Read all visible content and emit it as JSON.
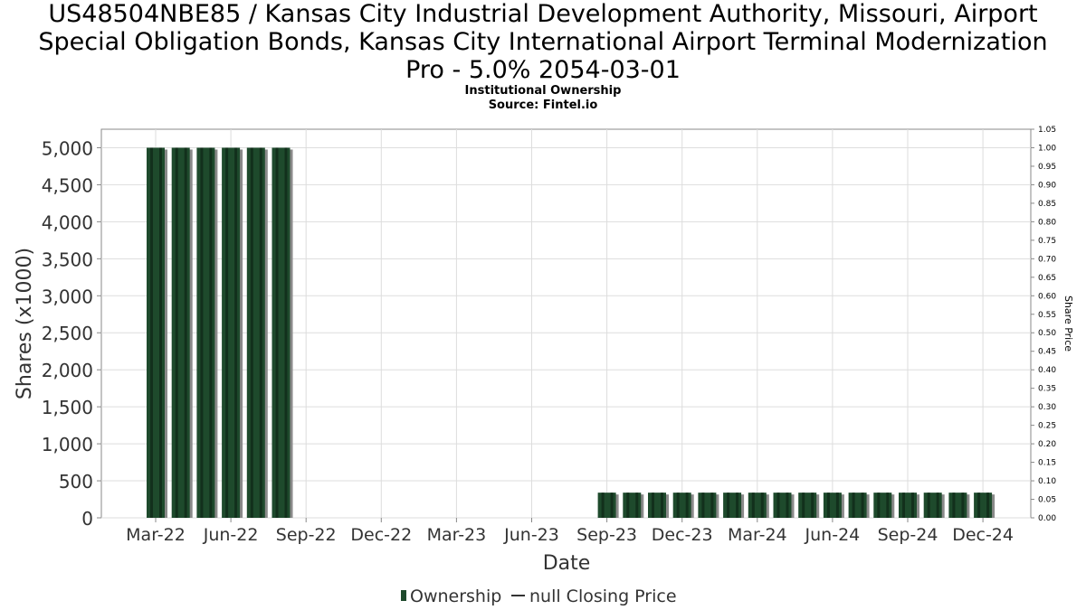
{
  "title_lines": [
    "US48504NBE85 / Kansas City Industrial Development Authority, Missouri, Airport",
    "Special Obligation Bonds, Kansas City International Airport Terminal Modernization",
    "Pro - 5.0% 2054-03-01"
  ],
  "subtitle": "Institutional Ownership",
  "source": "Source: Fintel.io",
  "colors": {
    "bar": "#1e4a2c",
    "bar_dark": "#12301c",
    "bar_shadow": "#8a8a8a",
    "grid": "#dddddd",
    "axis": "#888888",
    "text": "#333333"
  },
  "chart_data": {
    "type": "bar",
    "title": "US48504NBE85 / Kansas City Industrial Development Authority, Missouri, Airport Special Obligation Bonds, Kansas City International Airport Terminal Modernization Pro - 5.0% 2054-03-01",
    "subtitle": "Institutional Ownership",
    "xlabel": "Date",
    "ylabel": "Shares (x1000)",
    "y2label": "Share Price",
    "x_tick_labels": [
      "Mar-22",
      "Jun-22",
      "Sep-22",
      "Dec-22",
      "Mar-23",
      "Jun-23",
      "Sep-23",
      "Dec-23",
      "Mar-24",
      "Jun-24",
      "Sep-24",
      "Dec-24"
    ],
    "y_ticks": [
      0,
      500,
      1000,
      1500,
      2000,
      2500,
      3000,
      3500,
      4000,
      4500,
      5000
    ],
    "y_tick_labels": [
      "0",
      "500",
      "1,000",
      "1,500",
      "2,000",
      "2,500",
      "3,000",
      "3,500",
      "4,000",
      "4,500",
      "5,000"
    ],
    "ylim": [
      0,
      5250
    ],
    "y2_ticks": [
      "0.00",
      "0.05",
      "0.10",
      "0.15",
      "0.20",
      "0.25",
      "0.30",
      "0.35",
      "0.40",
      "0.45",
      "0.50",
      "0.55",
      "0.60",
      "0.65",
      "0.70",
      "0.75",
      "0.80",
      "0.85",
      "0.90",
      "0.95",
      "1.00",
      "1.05"
    ],
    "y2lim": [
      0,
      1.05
    ],
    "grid": true,
    "legend_position": "bottom-center",
    "series": [
      {
        "name": "Ownership",
        "kind": "bar",
        "x": [
          "2022-03",
          "2022-04",
          "2022-05",
          "2022-06",
          "2022-07",
          "2022-08",
          "2023-09",
          "2023-10",
          "2023-11",
          "2023-12",
          "2024-01",
          "2024-02",
          "2024-03",
          "2024-04",
          "2024-05",
          "2024-06",
          "2024-07",
          "2024-08",
          "2024-09",
          "2024-10",
          "2024-11",
          "2024-12"
        ],
        "values": [
          5000,
          5000,
          5000,
          5000,
          5000,
          5000,
          340,
          340,
          340,
          340,
          340,
          340,
          340,
          340,
          340,
          340,
          340,
          340,
          340,
          340,
          340,
          340
        ]
      },
      {
        "name": "null Closing Price",
        "kind": "line",
        "values": []
      }
    ],
    "legend": [
      "Ownership",
      "null Closing Price"
    ]
  }
}
